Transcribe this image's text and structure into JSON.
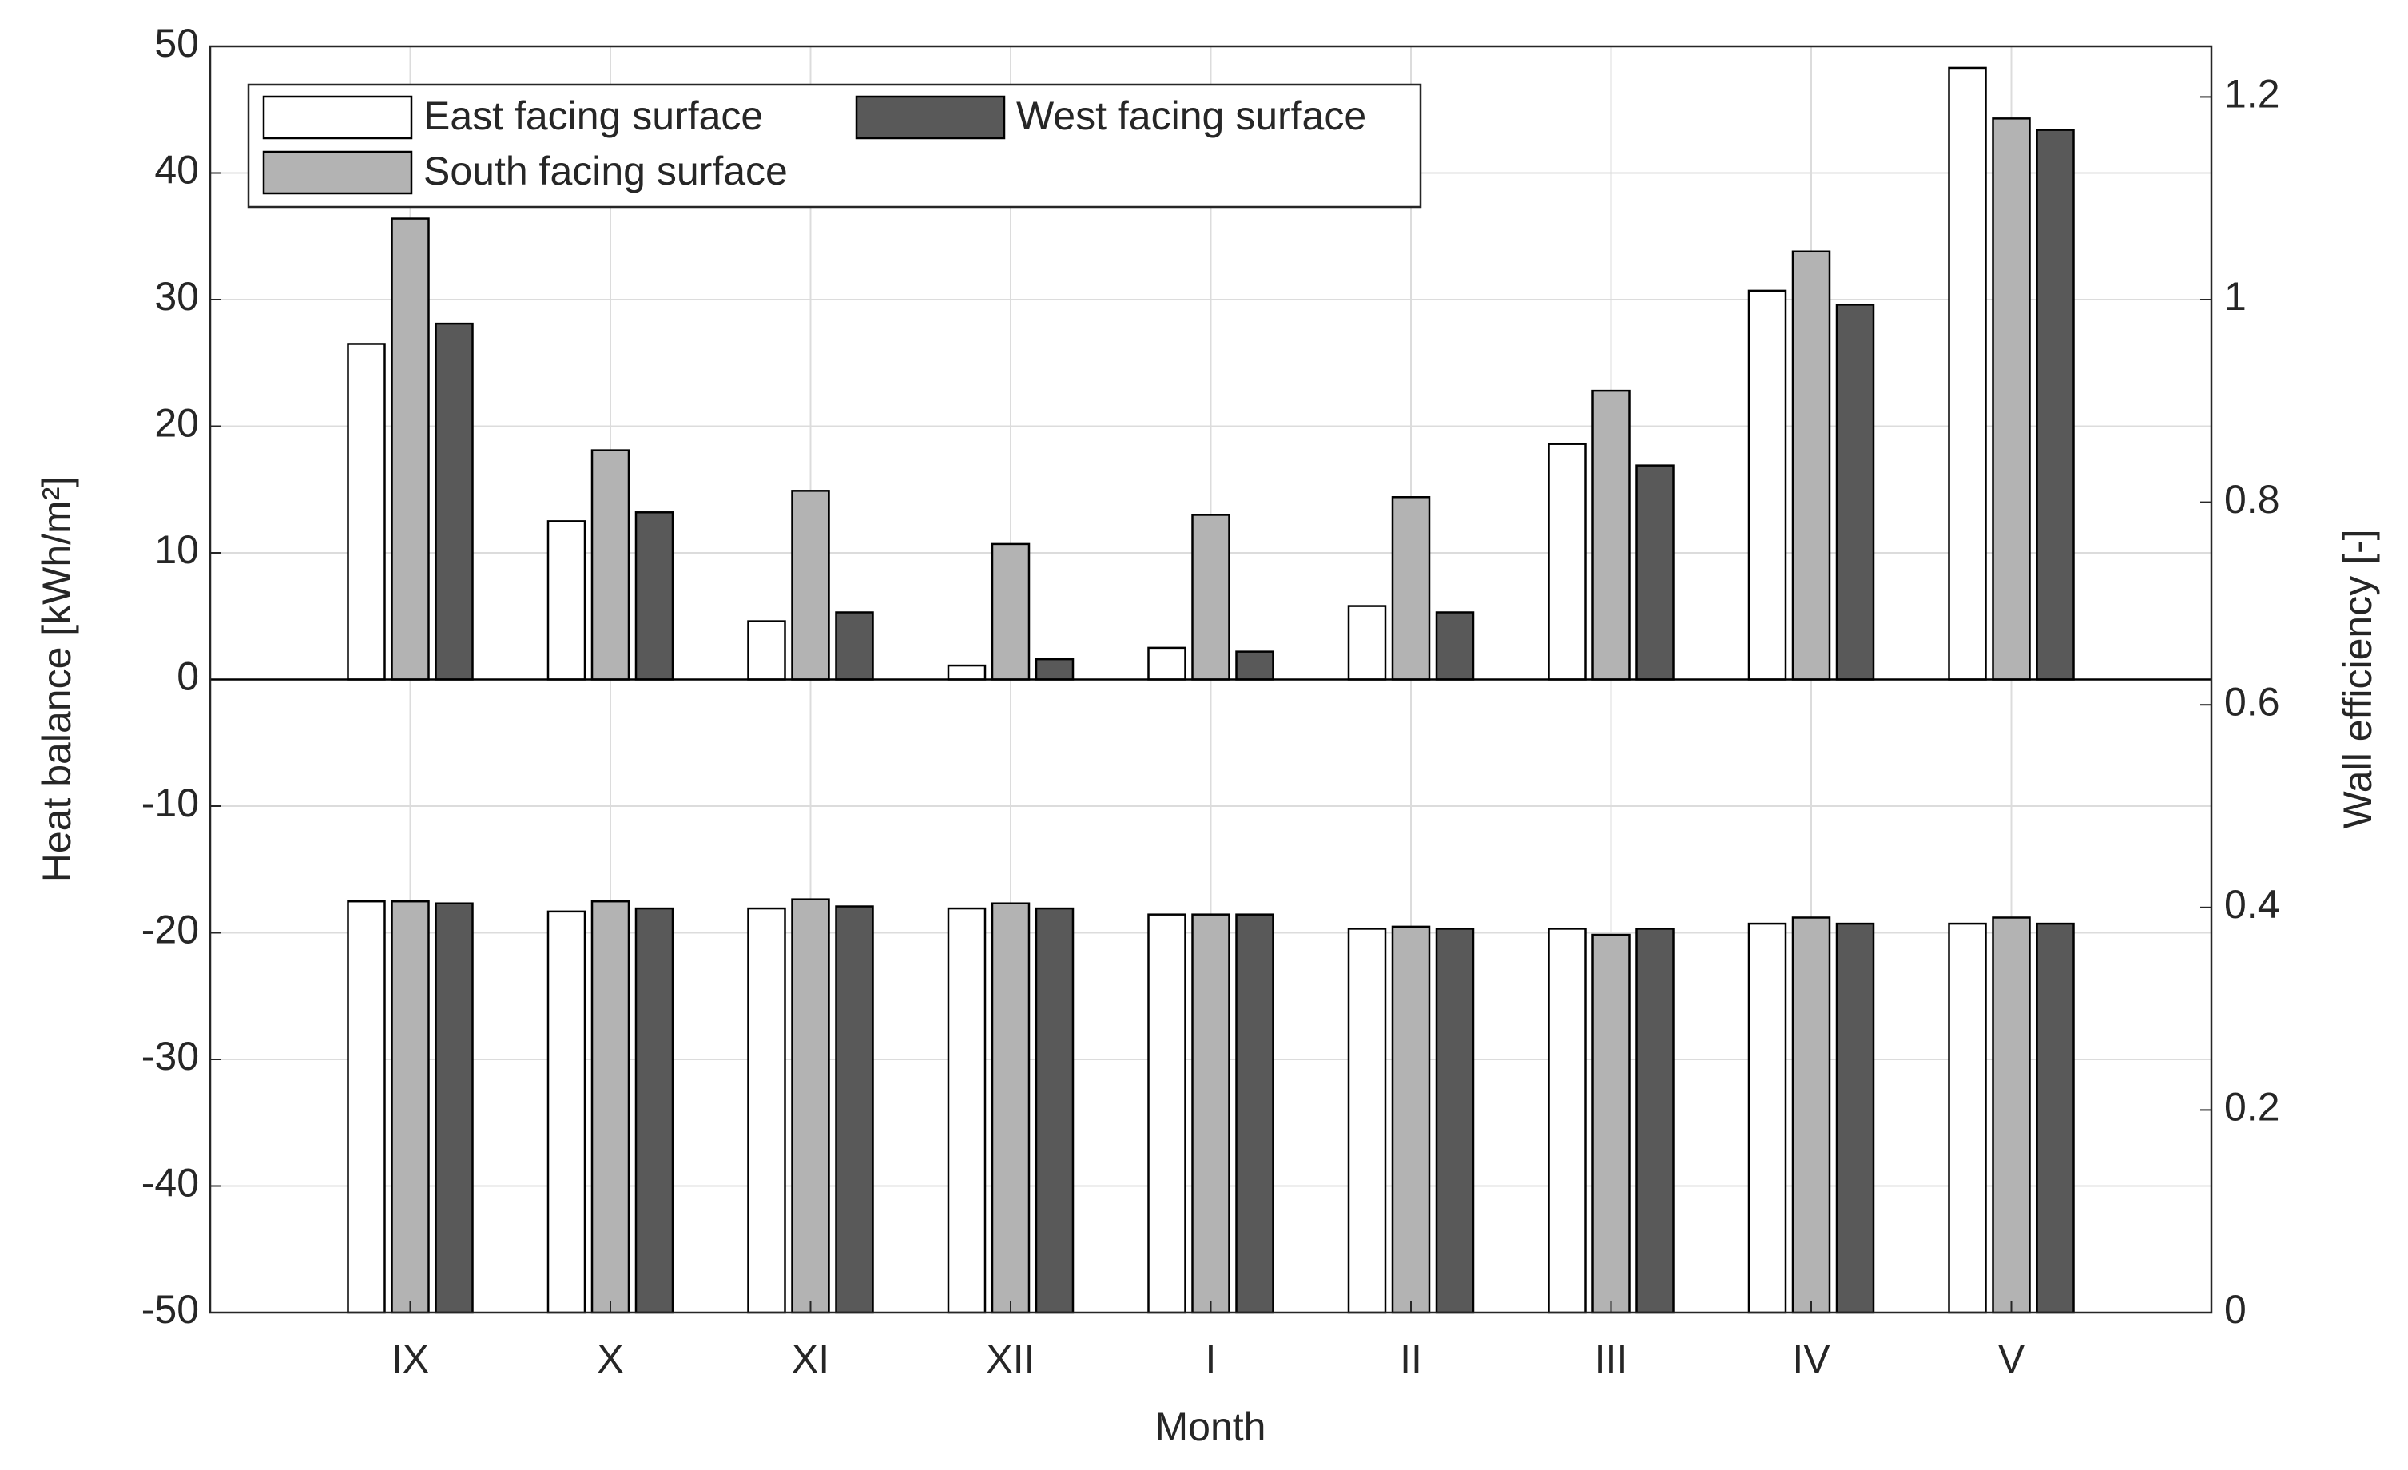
{
  "chart_data": {
    "type": "bar",
    "x_label": "Month",
    "y_label": "Heat balance [kWh/m²]",
    "y2_label": "Wall efficiency [-]",
    "categories": [
      "IX",
      "X",
      "XI",
      "XII",
      "I",
      "II",
      "III",
      "IV",
      "V"
    ],
    "series": [
      {
        "name": "East facing surface",
        "color": "#ffffff",
        "values": [
          26.5,
          12.5,
          4.6,
          1.1,
          2.5,
          5.8,
          18.6,
          30.7,
          48.3
        ],
        "efficiency": [
          0.406,
          0.396,
          0.399,
          0.399,
          0.393,
          0.379,
          0.379,
          0.384,
          0.384
        ]
      },
      {
        "name": "South facing surface",
        "color": "#b3b3b3",
        "values": [
          36.4,
          18.1,
          14.9,
          10.7,
          13.0,
          14.4,
          22.8,
          33.8,
          44.3
        ],
        "efficiency": [
          0.406,
          0.406,
          0.408,
          0.404,
          0.393,
          0.381,
          0.373,
          0.39,
          0.39
        ]
      },
      {
        "name": "West facing surface",
        "color": "#595959",
        "values": [
          28.1,
          13.2,
          5.3,
          1.6,
          2.2,
          5.3,
          16.9,
          29.6,
          43.4
        ],
        "efficiency": [
          0.404,
          0.399,
          0.401,
          0.399,
          0.393,
          0.379,
          0.379,
          0.384,
          0.384
        ]
      }
    ],
    "ylim": [
      -50,
      50
    ],
    "yticks": [
      -50,
      -40,
      -30,
      -20,
      -10,
      0,
      10,
      20,
      30,
      40,
      50
    ],
    "y2lim": [
      0,
      1.25
    ],
    "y2ticks": [
      0,
      0.2,
      0.4,
      0.6,
      0.8,
      1,
      1.2
    ],
    "grid": true,
    "legend_position": "upper left"
  }
}
